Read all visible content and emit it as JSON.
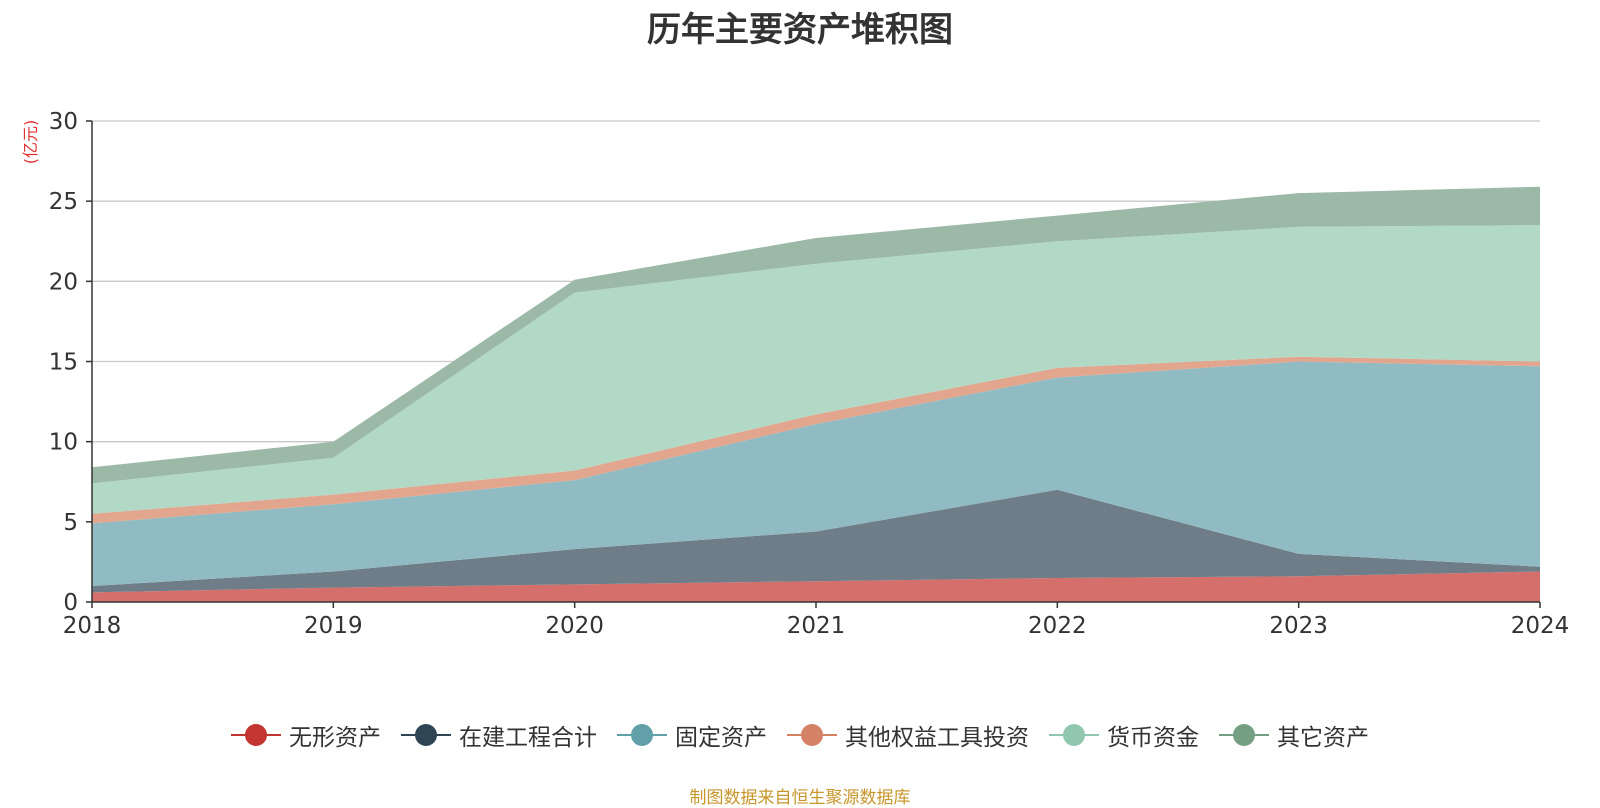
{
  "colors": {
    "text": "#333333",
    "unit": "#e03030",
    "grid": "#c8c8c8",
    "source": "#c8962a"
  },
  "chart_data": {
    "type": "area",
    "stacked": true,
    "title": "历年主要资产堆积图",
    "ylabel": "(亿元)",
    "xlabel": "",
    "x": [
      "2018",
      "2019",
      "2020",
      "2021",
      "2022",
      "2023",
      "2024"
    ],
    "ylim": [
      0,
      30
    ],
    "yticks": [
      0,
      5,
      10,
      15,
      20,
      25,
      30
    ],
    "grid": true,
    "legend_position": "bottom",
    "series": [
      {
        "name": "无形资产",
        "color": "#c23531",
        "fill": "#d46f6c",
        "values": [
          0.6,
          0.9,
          1.1,
          1.3,
          1.5,
          1.6,
          1.9
        ]
      },
      {
        "name": "在建工程合计",
        "color": "#2f4554",
        "fill": "#6e7d87",
        "values": [
          0.4,
          1.0,
          2.2,
          3.1,
          5.5,
          1.4,
          0.3
        ]
      },
      {
        "name": "固定资产",
        "color": "#61a0a8",
        "fill": "#91bbc3",
        "values": [
          3.9,
          4.2,
          4.3,
          6.7,
          7.0,
          12.0,
          12.5
        ]
      },
      {
        "name": "其他权益工具投资",
        "color": "#d48265",
        "fill": "#e2a68f",
        "values": [
          0.6,
          0.6,
          0.6,
          0.6,
          0.6,
          0.3,
          0.3
        ]
      },
      {
        "name": "货币资金",
        "color": "#91c7ae",
        "fill": "#b1d9c6",
        "values": [
          1.9,
          2.3,
          11.1,
          9.4,
          7.9,
          8.1,
          8.5
        ]
      },
      {
        "name": "其它资产",
        "color": "#749f83",
        "fill": "#9cb8a6",
        "values": [
          1.0,
          1.0,
          0.8,
          1.6,
          1.6,
          2.1,
          2.4
        ]
      }
    ]
  },
  "source_note": "制图数据来自恒生聚源数据库"
}
